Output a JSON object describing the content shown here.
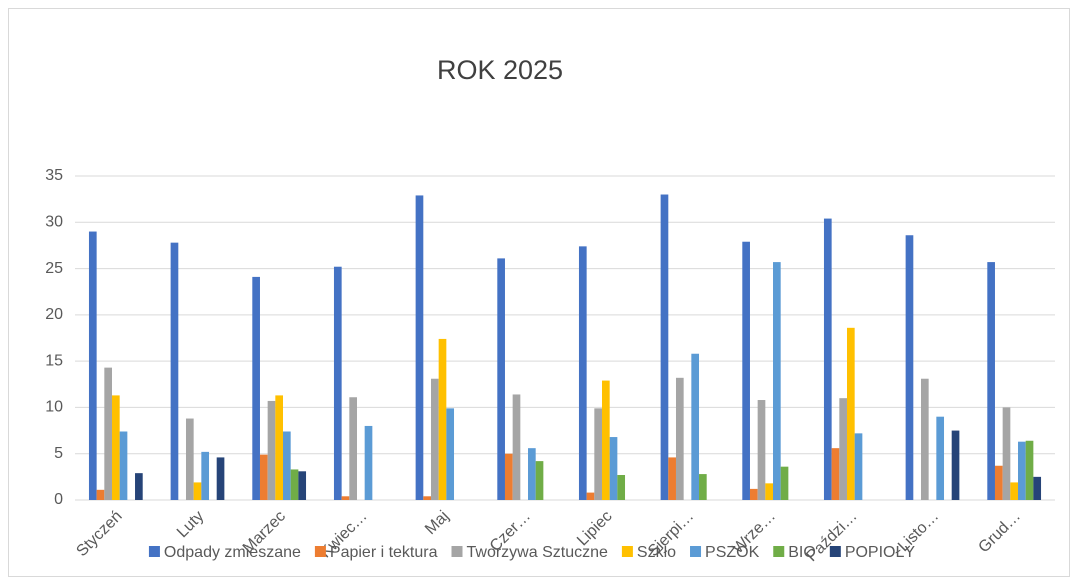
{
  "chart_data": {
    "type": "bar",
    "title": "ROK 2025",
    "categories": [
      "Styczeń",
      "Luty",
      "Marzec",
      "Kwiec…",
      "Maj",
      "Czer…",
      "Lipiec",
      "Sierpi…",
      "Wrze…",
      "Paździ…",
      "Listo…",
      "Grud…"
    ],
    "series": [
      {
        "name": "Odpady zmieszane",
        "color": "#4472c4",
        "values": [
          29,
          27.8,
          24.1,
          25.2,
          32.9,
          26.1,
          27.4,
          33,
          27.9,
          30.4,
          28.6,
          25.7
        ]
      },
      {
        "name": "Papier i tektura",
        "color": "#ed7d31",
        "values": [
          1.1,
          null,
          4.9,
          0.4,
          0.4,
          5,
          0.8,
          4.6,
          1.2,
          5.6,
          null,
          3.7
        ]
      },
      {
        "name": "Tworzywa Sztuczne",
        "color": "#a5a5a5",
        "values": [
          14.3,
          8.8,
          10.7,
          11.1,
          13.1,
          11.4,
          9.9,
          13.2,
          10.8,
          11,
          13.1,
          10
        ]
      },
      {
        "name": "Szkło",
        "color": "#ffc000",
        "values": [
          11.3,
          1.9,
          11.3,
          null,
          17.4,
          null,
          12.9,
          null,
          1.8,
          18.6,
          null,
          1.9
        ]
      },
      {
        "name": "PSZOK",
        "color": "#5b9bd5",
        "values": [
          7.4,
          5.2,
          7.4,
          8,
          9.9,
          5.6,
          6.8,
          15.8,
          25.7,
          7.2,
          9,
          6.3
        ]
      },
      {
        "name": "BIO",
        "color": "#70ad47",
        "values": [
          null,
          null,
          3.3,
          null,
          null,
          4.2,
          2.7,
          2.8,
          3.6,
          null,
          null,
          6.4
        ]
      },
      {
        "name": "POPIOŁY",
        "color": "#264478",
        "values": [
          2.9,
          4.6,
          3.1,
          null,
          null,
          null,
          null,
          null,
          null,
          null,
          7.5,
          2.5
        ]
      }
    ],
    "ylim": [
      0,
      35
    ],
    "yticks": [
      0,
      5,
      10,
      15,
      20,
      25,
      30,
      35
    ],
    "grid": true,
    "legend": "bottom"
  }
}
